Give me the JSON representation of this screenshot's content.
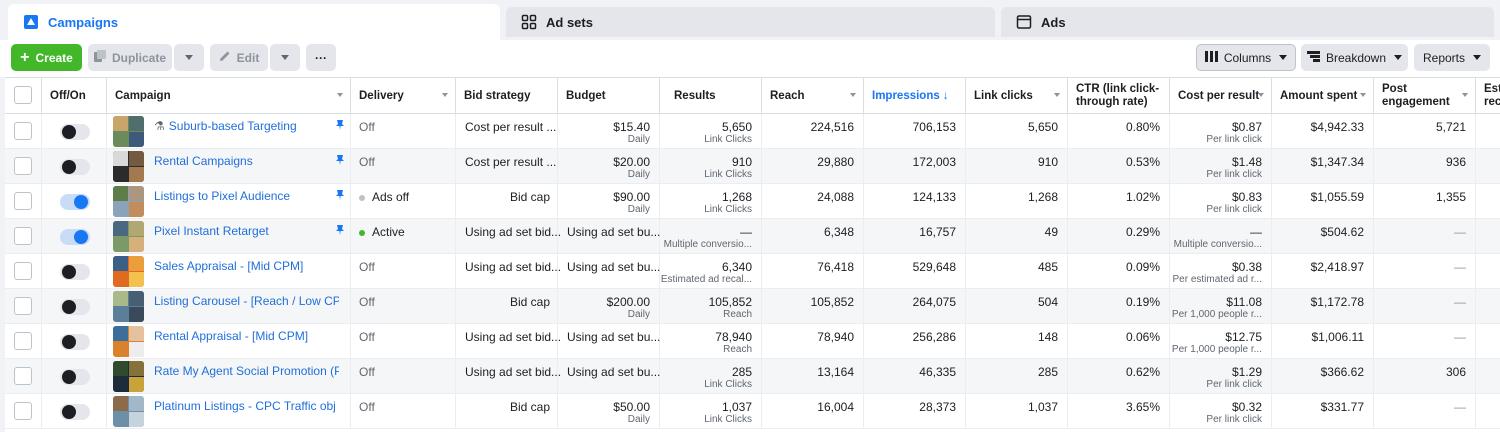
{
  "tabs": [
    {
      "label": "Campaigns",
      "icon": "campaigns-icon"
    },
    {
      "label": "Ad sets",
      "icon": "grid-icon"
    },
    {
      "label": "Ads",
      "icon": "ad-icon"
    }
  ],
  "toolbar": {
    "create": "Create",
    "duplicate": "Duplicate",
    "edit": "Edit",
    "more": "···",
    "columns": "Columns",
    "breakdown": "Breakdown",
    "reports": "Reports"
  },
  "colors": {
    "accent": "#1877f2",
    "create_green": "#42b72a",
    "link_blue": "#216fdb",
    "active_green": "#42b72a"
  },
  "columns": {
    "offon": "Off/On",
    "campaign": "Campaign",
    "delivery": "Delivery",
    "bid": "Bid strategy",
    "budget": "Budget",
    "results": "Results",
    "reach": "Reach",
    "impressions": "Impressions",
    "impressions_arrow": "↓",
    "clicks": "Link clicks",
    "ctr_line1": "CTR (link click-",
    "ctr_line2": "through rate)",
    "cpr": "Cost per result",
    "spent": "Amount spent",
    "post_line1": "Post",
    "post_line2": "engagement",
    "est_line1": "Est",
    "est_line2": "rec"
  },
  "rows": [
    {
      "on": false,
      "name": "Suburb-based Targeting",
      "flask": "⚗",
      "pinned": true,
      "delivery": "Off",
      "dot": "",
      "bid": "Cost per result ...",
      "budget": "$15.40",
      "budget_sub": "Daily",
      "results": "5,650",
      "results_sub": "Link Clicks",
      "reach": "224,516",
      "impressions": "706,153",
      "clicks": "5,650",
      "ctr": "0.80%",
      "cpr": "$0.87",
      "cpr_sub": "Per link click",
      "spent": "$4,942.33",
      "post": "5,721"
    },
    {
      "on": false,
      "name": "Rental Campaigns",
      "flask": "",
      "pinned": true,
      "delivery": "Off",
      "dot": "",
      "bid": "Cost per result ...",
      "budget": "$20.00",
      "budget_sub": "Daily",
      "results": "910",
      "results_sub": "Link Clicks",
      "reach": "29,880",
      "impressions": "172,003",
      "clicks": "910",
      "ctr": "0.53%",
      "cpr": "$1.48",
      "cpr_sub": "Per link click",
      "spent": "$1,347.34",
      "post": "936"
    },
    {
      "on": true,
      "name": "Listings to Pixel Audience",
      "flask": "",
      "pinned": true,
      "delivery": "Ads off",
      "dot": "#bec3c9",
      "bid": "Bid cap",
      "budget": "$90.00",
      "budget_sub": "Daily",
      "results": "1,268",
      "results_sub": "Link Clicks",
      "reach": "24,088",
      "impressions": "124,133",
      "clicks": "1,268",
      "ctr": "1.02%",
      "cpr": "$0.83",
      "cpr_sub": "Per link click",
      "spent": "$1,055.59",
      "post": "1,355"
    },
    {
      "on": true,
      "name": "Pixel Instant Retarget",
      "flask": "",
      "pinned": true,
      "delivery": "Active",
      "dot": "#42b72a",
      "bid": "Using ad set bid...",
      "budget": "Using ad set bu...",
      "budget_sub": "",
      "results": "—",
      "results_sub": "Multiple conversio...",
      "reach": "6,348",
      "impressions": "16,757",
      "clicks": "49",
      "ctr": "0.29%",
      "cpr": "—",
      "cpr_sub": "Multiple conversio...",
      "spent": "$504.62",
      "post": "—"
    },
    {
      "on": false,
      "name": "Sales Appraisal - [Mid CPM]",
      "flask": "",
      "pinned": false,
      "delivery": "Off",
      "dot": "",
      "bid": "Using ad set bid...",
      "budget": "Using ad set bu...",
      "budget_sub": "",
      "results": "6,340",
      "results_sub": "Estimated ad recal...",
      "reach": "76,418",
      "impressions": "529,648",
      "clicks": "485",
      "ctr": "0.09%",
      "cpr": "$0.38",
      "cpr_sub": "Per estimated ad r...",
      "spent": "$2,418.97",
      "post": "—"
    },
    {
      "on": false,
      "name": "Listing Carousel - [Reach / Low CPM]...",
      "flask": "",
      "pinned": false,
      "delivery": "Off",
      "dot": "",
      "bid": "Bid cap",
      "budget": "$200.00",
      "budget_sub": "Daily",
      "results": "105,852",
      "results_sub": "Reach",
      "reach": "105,852",
      "impressions": "264,075",
      "clicks": "504",
      "ctr": "0.19%",
      "cpr": "$11.08",
      "cpr_sub": "Per 1,000 people r...",
      "spent": "$1,172.78",
      "post": "—"
    },
    {
      "on": false,
      "name": "Rental Appraisal - [Mid CPM]",
      "flask": "",
      "pinned": false,
      "delivery": "Off",
      "dot": "",
      "bid": "Using ad set bid...",
      "budget": "Using ad set bu...",
      "budget_sub": "",
      "results": "78,940",
      "results_sub": "Reach",
      "reach": "78,940",
      "impressions": "256,286",
      "clicks": "148",
      "ctr": "0.06%",
      "cpr": "$12.75",
      "cpr_sub": "Per 1,000 people r...",
      "spent": "$1,006.11",
      "post": "—"
    },
    {
      "on": false,
      "name": "Rate My Agent Social Promotion (Pix...",
      "flask": "",
      "pinned": false,
      "delivery": "Off",
      "dot": "",
      "bid": "Using ad set bid...",
      "budget": "Using ad set bu...",
      "budget_sub": "",
      "results": "285",
      "results_sub": "Link Clicks",
      "reach": "13,164",
      "impressions": "46,335",
      "clicks": "285",
      "ctr": "0.62%",
      "cpr": "$1.29",
      "cpr_sub": "Per link click",
      "spent": "$366.62",
      "post": "306"
    },
    {
      "on": false,
      "name": "Platinum Listings - CPC Traffic obj",
      "flask": "",
      "pinned": false,
      "delivery": "Off",
      "dot": "",
      "bid": "Bid cap",
      "budget": "$50.00",
      "budget_sub": "Daily",
      "results": "1,037",
      "results_sub": "Link Clicks",
      "reach": "16,004",
      "impressions": "28,373",
      "clicks": "1,037",
      "ctr": "3.65%",
      "cpr": "$0.32",
      "cpr_sub": "Per link click",
      "spent": "$331.77",
      "post": "—"
    }
  ]
}
